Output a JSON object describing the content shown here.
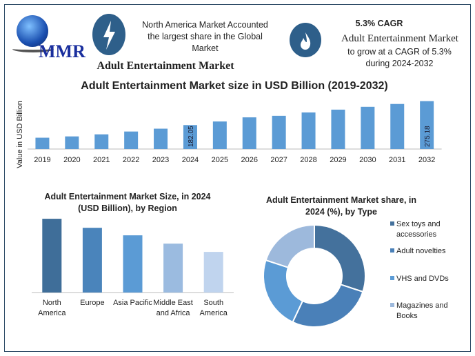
{
  "header": {
    "logo_text": "MMR",
    "lightning_icon": "lightning-bolt-icon",
    "fire_icon": "flame-icon",
    "region_note": "North America Market Accounted the largest share in the Global Market",
    "market_name": "Adult Entertainment Market",
    "cagr_title": "5.3% CAGR",
    "cagr_market": "Adult Entertainment Market",
    "cagr_text": "to grow at a CAGR of 5.3% during 2024-2032",
    "accent_color": "#2e5f8a"
  },
  "chart_data": [
    {
      "type": "bar",
      "title": "Adult Entertainment Market size in USD Billion (2019-2032)",
      "xlabel": "",
      "ylabel": "Value in USD Billion",
      "categories": [
        "2019",
        "2020",
        "2021",
        "2022",
        "2023",
        "2024",
        "2025",
        "2026",
        "2027",
        "2028",
        "2029",
        "2030",
        "2031",
        "2032"
      ],
      "values": [
        133,
        138,
        146,
        157,
        168,
        182.05,
        196,
        212,
        218,
        231,
        242,
        253,
        264,
        275.18
      ],
      "data_labels": {
        "2024": "182.05",
        "2032": "275.18"
      },
      "ylim": [
        89,
        290
      ],
      "grid": false,
      "color": "#5b9bd5"
    },
    {
      "type": "bar",
      "title": "Adult Entertainment Market  Size, in 2024 (USD Billion), by Region",
      "categories": [
        "North America",
        "Europe",
        "Asia Pacific",
        "Middle East and Africa",
        "South America"
      ],
      "values": [
        98,
        86,
        76,
        65,
        54
      ],
      "grid": false,
      "colors": [
        "#3f6e99",
        "#4a84bb",
        "#5b9bd5",
        "#9bbbe0",
        "#c0d4ee"
      ]
    },
    {
      "type": "pie",
      "donut": true,
      "title": "Adult Entertainment Market share, in 2024 (%), by Type",
      "categories": [
        "Sex toys and accessories",
        "Adult novelties",
        "VHS and DVDs",
        "Magazines and Books"
      ],
      "values": [
        30,
        27,
        23,
        20
      ],
      "colors": [
        "#44719c",
        "#4a80b8",
        "#5b9bd5",
        "#9db9dc"
      ],
      "legend": "right"
    }
  ]
}
